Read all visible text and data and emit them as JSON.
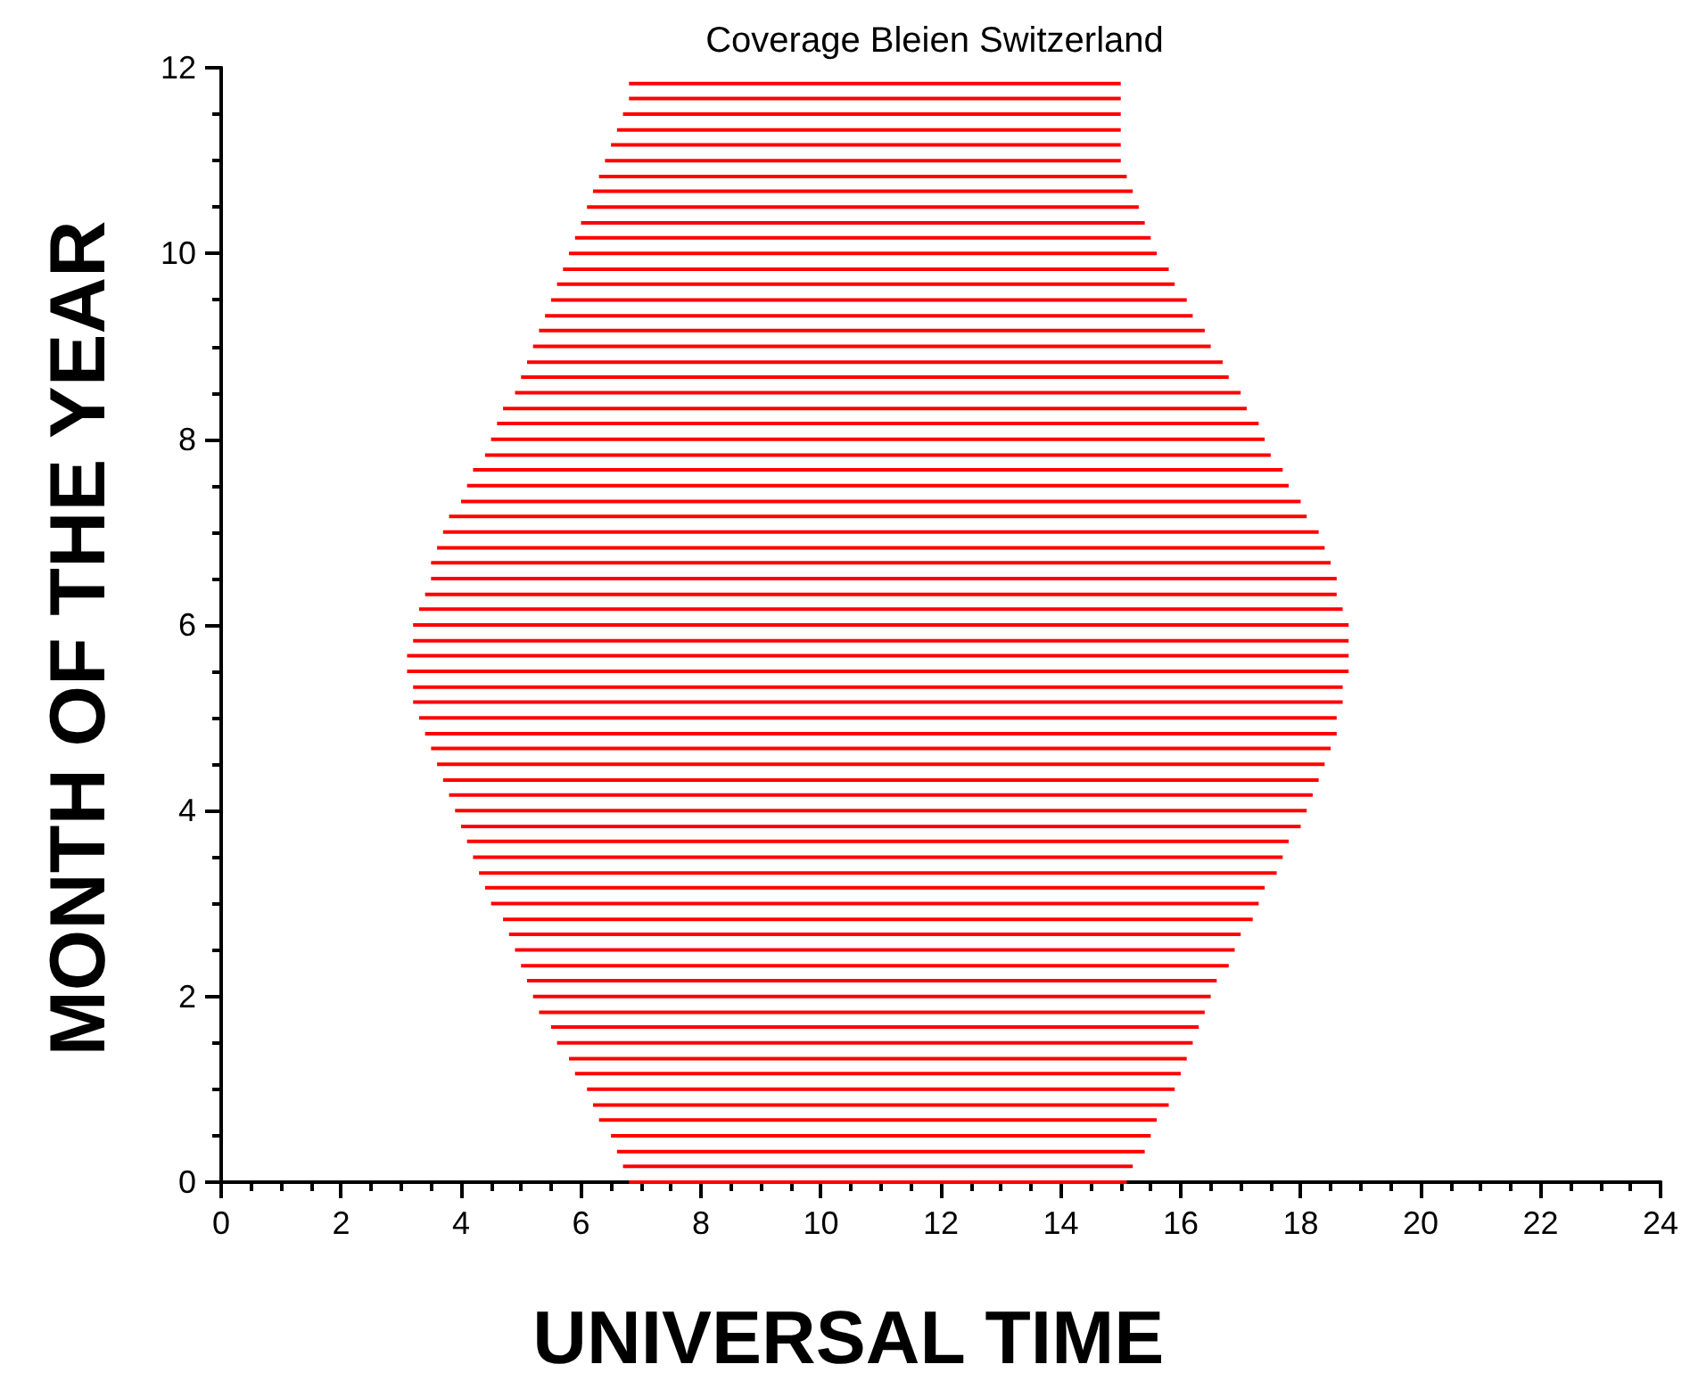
{
  "chart_data": {
    "type": "bar",
    "orientation": "horizontal",
    "title": "Coverage Bleien Switzerland",
    "xlabel": "UNIVERSAL TIME",
    "ylabel": "MONTH OF THE YEAR",
    "color": "#ff0000",
    "x": [
      0,
      0.17,
      0.33,
      0.5,
      0.67,
      0.83,
      1,
      1.17,
      1.33,
      1.5,
      1.67,
      1.83,
      2,
      2.17,
      2.33,
      2.5,
      2.67,
      2.83,
      3,
      3.17,
      3.33,
      3.5,
      3.67,
      3.83,
      4,
      4.17,
      4.33,
      4.5,
      4.67,
      4.83,
      5,
      5.17,
      5.33,
      5.5,
      5.67,
      5.83,
      6,
      6.17,
      6.33,
      6.5,
      6.67,
      6.83,
      7,
      7.17,
      7.33,
      7.5,
      7.67,
      7.83,
      8,
      8.17,
      8.33,
      8.5,
      8.67,
      8.83,
      9,
      9.17,
      9.33,
      9.5,
      9.67,
      9.83,
      10,
      10.17,
      10.33,
      10.5,
      10.67,
      10.83,
      11,
      11.17,
      11.33,
      11.5,
      11.67,
      11.83
    ],
    "base": [
      6.8,
      6.7,
      6.6,
      6.5,
      6.3,
      6.2,
      6.1,
      5.9,
      5.8,
      5.6,
      5.5,
      5.3,
      5.2,
      5.1,
      5.0,
      4.9,
      4.8,
      4.7,
      4.5,
      4.4,
      4.3,
      4.2,
      4.1,
      4.0,
      3.9,
      3.8,
      3.7,
      3.6,
      3.5,
      3.4,
      3.3,
      3.2,
      3.2,
      3.1,
      3.1,
      3.2,
      3.2,
      3.3,
      3.4,
      3.5,
      3.5,
      3.6,
      3.7,
      3.8,
      4.0,
      4.1,
      4.2,
      4.4,
      4.5,
      4.6,
      4.7,
      4.9,
      5.0,
      5.1,
      5.2,
      5.3,
      5.4,
      5.5,
      5.6,
      5.7,
      5.8,
      5.9,
      6.0,
      6.1,
      6.2,
      6.3,
      6.4,
      6.5,
      6.6,
      6.7,
      6.8,
      6.8
    ],
    "values": [
      8.3,
      8.5,
      8.8,
      9.0,
      9.3,
      9.6,
      9.8,
      10.1,
      10.3,
      10.6,
      10.8,
      11.1,
      11.3,
      11.5,
      11.8,
      12.0,
      12.2,
      12.5,
      12.8,
      13.0,
      13.3,
      13.5,
      13.7,
      14.0,
      14.2,
      14.4,
      14.6,
      14.8,
      15.0,
      15.2,
      15.3,
      15.5,
      15.5,
      15.7,
      15.7,
      15.6,
      15.6,
      15.4,
      15.2,
      15.1,
      15.0,
      14.8,
      14.6,
      14.3,
      14.0,
      13.7,
      13.5,
      13.1,
      12.9,
      12.7,
      12.4,
      12.1,
      11.8,
      11.6,
      11.3,
      11.1,
      10.8,
      10.6,
      10.3,
      10.1,
      9.8,
      9.6,
      9.4,
      9.2,
      9.0,
      8.8,
      8.6,
      8.5,
      8.4,
      8.3,
      8.2,
      8.2
    ],
    "xlim": [
      0,
      24
    ],
    "xticks": [
      0,
      {
        "value": 0.5,
        "label": null
      },
      {
        "value": 1,
        "label": null
      },
      {
        "value": 1.5,
        "label": null
      },
      2,
      {
        "value": 2.5,
        "label": null
      },
      {
        "value": 3,
        "label": null
      },
      {
        "value": 3.5,
        "label": null
      },
      4,
      {
        "value": 4.5,
        "label": null
      },
      {
        "value": 5,
        "label": null
      },
      {
        "value": 5.5,
        "label": null
      },
      6,
      {
        "value": 6.5,
        "label": null
      },
      {
        "value": 7,
        "label": null
      },
      {
        "value": 7.5,
        "label": null
      },
      8,
      {
        "value": 8.5,
        "label": null
      },
      {
        "value": 9,
        "label": null
      },
      {
        "value": 9.5,
        "label": null
      },
      10,
      {
        "value": 10.5,
        "label": null
      },
      {
        "value": 11,
        "label": null
      },
      {
        "value": 11.5,
        "label": null
      },
      12,
      {
        "value": 12.5,
        "label": null
      },
      {
        "value": 13,
        "label": null
      },
      {
        "value": 13.5,
        "label": null
      },
      14,
      {
        "value": 14.5,
        "label": null
      },
      {
        "value": 15,
        "label": null
      },
      {
        "value": 15.5,
        "label": null
      },
      16,
      {
        "value": 16.5,
        "label": null
      },
      {
        "value": 17,
        "label": null
      },
      {
        "value": 17.5,
        "label": null
      },
      18,
      {
        "value": 18.5,
        "label": null
      },
      {
        "value": 19,
        "label": null
      },
      {
        "value": 19.5,
        "label": null
      },
      20,
      {
        "value": 20.5,
        "label": null
      },
      {
        "value": 21,
        "label": null
      },
      {
        "value": 21.5,
        "label": null
      },
      22,
      {
        "value": 22.5,
        "label": null
      },
      {
        "value": 23,
        "label": null
      },
      {
        "value": 23.5,
        "label": null
      },
      24
    ],
    "ylim": [
      0,
      12
    ],
    "yticks": [
      0,
      {
        "value": 0.5,
        "label": null
      },
      {
        "value": 1,
        "label": null
      },
      {
        "value": 1.5,
        "label": null
      },
      2,
      {
        "value": 2.5,
        "label": null
      },
      {
        "value": 3,
        "label": null
      },
      {
        "value": 3.5,
        "label": null
      },
      4,
      {
        "value": 4.5,
        "label": null
      },
      {
        "value": 5,
        "label": null
      },
      {
        "value": 5.5,
        "label": null
      },
      6,
      {
        "value": 6.5,
        "label": null
      },
      {
        "value": 7,
        "label": null
      },
      {
        "value": 7.5,
        "label": null
      },
      8,
      {
        "value": 8.5,
        "label": null
      },
      {
        "value": 9,
        "label": null
      },
      {
        "value": 9.5,
        "label": null
      },
      10,
      {
        "value": 10.5,
        "label": null
      },
      {
        "value": 11,
        "label": null
      },
      {
        "value": 11.5,
        "label": null
      },
      12
    ]
  }
}
